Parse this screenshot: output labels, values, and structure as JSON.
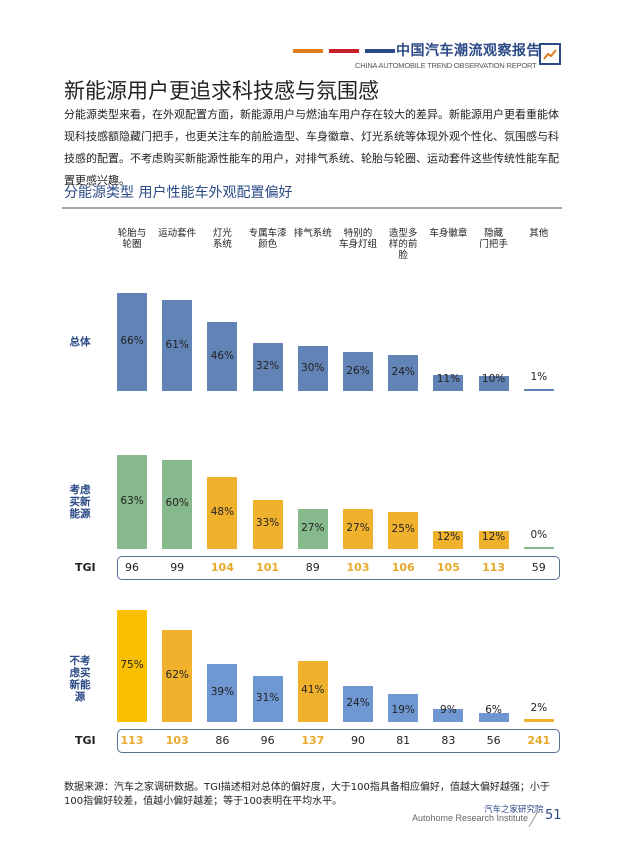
{
  "header": {
    "title": "中国汽车潮流观察报告",
    "subtitle": "CHINA AUTOMOBILE TREND OBSERVATION REPORT",
    "line_colors": [
      "#e07b20",
      "#c8202b",
      "#2b4a86"
    ],
    "icon": "trend-chart-icon"
  },
  "page": {
    "title": "新能源用户更追求科技感与氛围感",
    "intro": "分能源类型来看，在外观配置方面，新能源用户与燃油车用户存在较大的差异。新能源用户更看重能体现科技感额隐藏门把手，也更关注车的前脸造型、车身徽章、灯光系统等体现外观个性化、氛围感与科技感的配置。不考虑购买新能源性能车的用户，对排气系统、轮胎与轮圈、运动套件这些传统性能车配置更感兴趣。"
  },
  "chart_title": "分能源类型  用户性能车外观配置偏好",
  "footnote": "数据来源：汽车之家调研数据。TGI描述相对总体的偏好度，大于100指具备相应偏好，值越大偏好越强；小于100指偏好较差，值越小偏好越差；等于100表明在平均水平。",
  "footer": {
    "brand_cn": "汽车之家研究院",
    "brand_en": "Autohome Research Institute",
    "page_number": "51"
  },
  "colors": {
    "overall": "#6283b5",
    "green": "#86b98b",
    "orange": "#f0b22d",
    "gold": "#f8c000",
    "blue_light": "#6f98d2",
    "navy": "#2b4a86",
    "tgi_highlight": "#e8a82a"
  },
  "chart_data": {
    "type": "bar",
    "title": "分能源类型  用户性能车外观配置偏好",
    "categories": [
      "轮胎与轮圈",
      "运动套件",
      "灯光系统",
      "专属车漆颜色",
      "排气系统",
      "特别的车身灯组",
      "造型多样的前脸",
      "车身徽章",
      "隐藏门把手",
      "其他"
    ],
    "category_labels": [
      "轮胎与\n轮圈",
      "运动套件",
      "灯光\n系统",
      "专属车漆\n颜色",
      "排气系统",
      "特别的\n车身灯组",
      "造型多\n样的前\n脸",
      "车身徽章",
      "隐藏\n门把手",
      "其他"
    ],
    "series": [
      {
        "name": "总体",
        "values": [
          66,
          61,
          46,
          32,
          30,
          26,
          24,
          11,
          10,
          1
        ],
        "labels": [
          "66%",
          "61%",
          "46%",
          "32%",
          "30%",
          "26%",
          "24%",
          "11%",
          "10%",
          "1%"
        ],
        "colors": [
          "overall",
          "overall",
          "overall",
          "overall",
          "overall",
          "overall",
          "overall",
          "overall",
          "overall",
          "overall"
        ]
      },
      {
        "name": "考虑买新能源",
        "values": [
          63,
          60,
          48,
          33,
          27,
          27,
          25,
          12,
          12,
          0
        ],
        "labels": [
          "63%",
          "60%",
          "48%",
          "33%",
          "27%",
          "27%",
          "25%",
          "12%",
          "12%",
          "0%"
        ],
        "colors": [
          "green",
          "green",
          "orange",
          "orange",
          "green",
          "orange",
          "orange",
          "orange",
          "orange",
          "green"
        ],
        "tgi": [
          "96",
          "99",
          "104",
          "101",
          "89",
          "103",
          "106",
          "105",
          "113",
          "59"
        ],
        "tgi_highlight": [
          false,
          false,
          true,
          true,
          false,
          true,
          true,
          true,
          true,
          false
        ]
      },
      {
        "name": "不考虑买新能源",
        "values": [
          75,
          62,
          39,
          31,
          41,
          24,
          19,
          9,
          6,
          2
        ],
        "labels": [
          "75%",
          "62%",
          "39%",
          "31%",
          "41%",
          "24%",
          "19%",
          "9%",
          "6%",
          "2%"
        ],
        "colors": [
          "gold",
          "orange",
          "blue_light",
          "blue_light",
          "orange",
          "blue_light",
          "blue_light",
          "blue_light",
          "blue_light",
          "orange"
        ],
        "tgi": [
          "113",
          "103",
          "86",
          "96",
          "137",
          "90",
          "81",
          "83",
          "56",
          "241"
        ],
        "tgi_highlight": [
          true,
          true,
          false,
          false,
          true,
          false,
          false,
          false,
          false,
          true
        ]
      }
    ],
    "row_labels": [
      "总体",
      "考虑\n买新\n能源",
      "不考\n虑买\n新能\n源"
    ],
    "tgi_label": "TGI",
    "ylabel": "",
    "xlabel": "",
    "unit": "%"
  }
}
